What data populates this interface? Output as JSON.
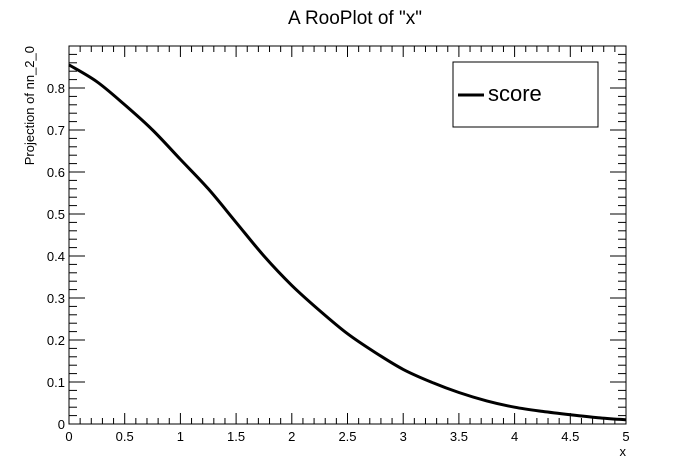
{
  "chart_data": {
    "type": "line",
    "title": "A RooPlot of \"x\"",
    "xlabel": "x",
    "ylabel": "Projection of nn_2_0",
    "xlim": [
      0,
      5
    ],
    "ylim": [
      0,
      0.9
    ],
    "xticks": [
      0,
      0.5,
      1,
      1.5,
      2,
      2.5,
      3,
      3.5,
      4,
      4.5,
      5
    ],
    "xtick_labels": [
      "0",
      "0.5",
      "1",
      "1.5",
      "2",
      "2.5",
      "3",
      "3.5",
      "4",
      "4.5",
      "5"
    ],
    "yticks": [
      0,
      0.1,
      0.2,
      0.3,
      0.4,
      0.5,
      0.6,
      0.7,
      0.8
    ],
    "ytick_labels": [
      "0",
      "0.1",
      "0.2",
      "0.3",
      "0.4",
      "0.5",
      "0.6",
      "0.7",
      "0.8"
    ],
    "grid": false,
    "legend_position": "top-right",
    "series": [
      {
        "name": "score",
        "color": "#000000",
        "x": [
          0,
          0.25,
          0.5,
          0.75,
          1,
          1.25,
          1.5,
          1.75,
          2,
          2.25,
          2.5,
          2.75,
          3,
          3.25,
          3.5,
          3.75,
          4,
          4.25,
          4.5,
          4.75,
          5
        ],
        "y": [
          0.855,
          0.815,
          0.76,
          0.7,
          0.63,
          0.56,
          0.48,
          0.4,
          0.33,
          0.27,
          0.215,
          0.17,
          0.13,
          0.1,
          0.075,
          0.055,
          0.04,
          0.03,
          0.022,
          0.015,
          0.01
        ]
      }
    ]
  }
}
